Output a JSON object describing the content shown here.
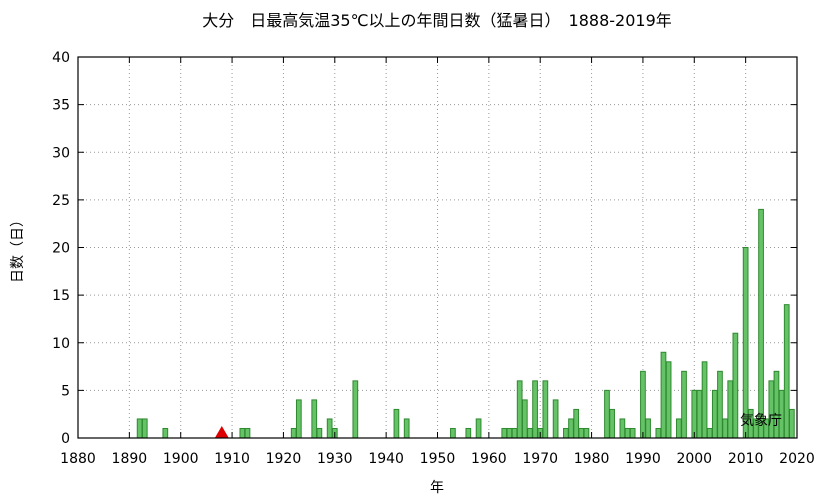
{
  "chart_data": {
    "type": "bar",
    "title": "大分　日最高気温35℃以上の年間日数（猛暑日）　1888-2019年",
    "xlabel": "年",
    "ylabel": "日数（日）",
    "credit": "気象庁",
    "xlim": [
      1880,
      2020
    ],
    "ylim": [
      0,
      40
    ],
    "xticks": [
      1880,
      1890,
      1900,
      1910,
      1920,
      1930,
      1940,
      1950,
      1960,
      1970,
      1980,
      1990,
      2000,
      2010,
      2020
    ],
    "yticks": [
      0,
      5,
      10,
      15,
      20,
      25,
      30,
      35,
      40
    ],
    "grid": true,
    "bar_color": "#66c266",
    "bar_edge_color": "#2f8a2f",
    "marker": {
      "x": 1908,
      "y": 0,
      "shape": "triangle",
      "color": "#dd0000"
    },
    "x": [
      1892,
      1893,
      1897,
      1912,
      1913,
      1922,
      1923,
      1926,
      1927,
      1929,
      1930,
      1934,
      1942,
      1944,
      1953,
      1956,
      1958,
      1963,
      1964,
      1965,
      1966,
      1967,
      1968,
      1969,
      1970,
      1971,
      1973,
      1975,
      1976,
      1977,
      1978,
      1979,
      1983,
      1984,
      1986,
      1987,
      1988,
      1990,
      1991,
      1993,
      1994,
      1995,
      1997,
      1998,
      2000,
      2001,
      2002,
      2003,
      2004,
      2005,
      2006,
      2007,
      2008,
      2010,
      2011,
      2012,
      2013,
      2014,
      2015,
      2016,
      2017,
      2018,
      2019
    ],
    "values": [
      2,
      2,
      1,
      1,
      1,
      1,
      4,
      4,
      1,
      2,
      1,
      6,
      3,
      2,
      1,
      1,
      2,
      1,
      1,
      1,
      6,
      4,
      1,
      6,
      1,
      6,
      4,
      1,
      2,
      3,
      1,
      1,
      5,
      3,
      2,
      1,
      1,
      7,
      2,
      1,
      9,
      8,
      2,
      7,
      5,
      5,
      8,
      1,
      5,
      7,
      2,
      6,
      11,
      20,
      3,
      2,
      24,
      2,
      6,
      7,
      5,
      14,
      3
    ]
  }
}
